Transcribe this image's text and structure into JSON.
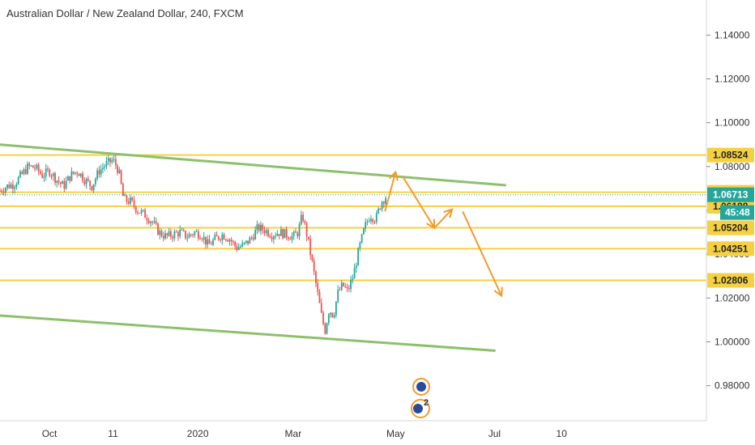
{
  "chart_data": {
    "type": "candlestick",
    "title": "Australian Dollar / New Zealand Dollar, 240, FXCM",
    "ylim": [
      0.964,
      1.156
    ],
    "y_ticks": [
      {
        "value": 1.14,
        "label": "1.14000"
      },
      {
        "value": 1.12,
        "label": "1.12000"
      },
      {
        "value": 1.1,
        "label": "1.10000"
      },
      {
        "value": 1.08,
        "label": "1.08000"
      },
      {
        "value": 1.06,
        "label": "1.06000"
      },
      {
        "value": 1.04,
        "label": "1.04000"
      },
      {
        "value": 1.02,
        "label": "1.02000"
      },
      {
        "value": 1.0,
        "label": "1.00000"
      },
      {
        "value": 0.98,
        "label": "0.98000"
      }
    ],
    "x_ticks": [
      {
        "t": 0.07,
        "label": "Oct"
      },
      {
        "t": 0.16,
        "label": "11"
      },
      {
        "t": 0.28,
        "label": "2020"
      },
      {
        "t": 0.415,
        "label": "Mar"
      },
      {
        "t": 0.56,
        "label": "May"
      },
      {
        "t": 0.7,
        "label": "Jul"
      },
      {
        "t": 0.795,
        "label": "10"
      }
    ],
    "horizontal_levels": [
      {
        "value": 1.08524,
        "label": "1.08524",
        "color": "#f5d142"
      },
      {
        "value": 1.06827,
        "label": "1.06827",
        "color": "#f5d142"
      },
      {
        "value": 1.06188,
        "label": "1.06188",
        "color": "#f5d142"
      },
      {
        "value": 1.05204,
        "label": "1.05204",
        "color": "#f5d142"
      },
      {
        "value": 1.04251,
        "label": "1.04251",
        "color": "#f5d142"
      },
      {
        "value": 1.02806,
        "label": "1.02806",
        "color": "#f5d142"
      }
    ],
    "current_price": {
      "value": 1.06713,
      "label": "1.06713",
      "color": "#26a69a"
    },
    "countdown": {
      "label": "45:48",
      "color": "#26a69a"
    },
    "trend_lines": [
      {
        "from": [
          0.0,
          1.09
        ],
        "to": [
          0.715,
          1.0715
        ],
        "color": "#8dc06b"
      },
      {
        "from": [
          0.0,
          1.012
        ],
        "to": [
          0.7,
          0.996
        ],
        "color": "#8dc06b"
      }
    ],
    "arrows": [
      {
        "from": [
          0.545,
          1.0595
        ],
        "to": [
          0.56,
          1.0775
        ],
        "color": "#f29b2b"
      },
      {
        "from": [
          0.57,
          1.0755
        ],
        "to": [
          0.615,
          1.052
        ],
        "color": "#f29b2b"
      },
      {
        "from": [
          0.615,
          1.052
        ],
        "to": [
          0.64,
          1.0605
        ],
        "color": "#f29b2b"
      },
      {
        "from": [
          0.655,
          1.0595
        ],
        "to": [
          0.71,
          1.021
        ],
        "color": "#f29b2b"
      }
    ],
    "price_path": [
      [
        0.0,
        1.069
      ],
      [
        0.01,
        1.071
      ],
      [
        0.02,
        1.072
      ],
      [
        0.03,
        1.076
      ],
      [
        0.04,
        1.08
      ],
      [
        0.05,
        1.0795
      ],
      [
        0.06,
        1.076
      ],
      [
        0.07,
        1.078
      ],
      [
        0.08,
        1.074
      ],
      [
        0.09,
        1.071
      ],
      [
        0.1,
        1.076
      ],
      [
        0.11,
        1.078
      ],
      [
        0.12,
        1.074
      ],
      [
        0.13,
        1.071
      ],
      [
        0.14,
        1.078
      ],
      [
        0.15,
        1.081
      ],
      [
        0.16,
        1.083
      ],
      [
        0.168,
        1.078
      ],
      [
        0.175,
        1.065
      ],
      [
        0.185,
        1.064
      ],
      [
        0.195,
        1.06
      ],
      [
        0.205,
        1.058
      ],
      [
        0.215,
        1.055
      ],
      [
        0.225,
        1.05
      ],
      [
        0.235,
        1.048
      ],
      [
        0.245,
        1.049
      ],
      [
        0.255,
        1.05
      ],
      [
        0.265,
        1.048
      ],
      [
        0.275,
        1.05
      ],
      [
        0.285,
        1.049
      ],
      [
        0.295,
        1.044
      ],
      [
        0.305,
        1.047
      ],
      [
        0.315,
        1.049
      ],
      [
        0.325,
        1.047
      ],
      [
        0.335,
        1.043
      ],
      [
        0.345,
        1.044
      ],
      [
        0.355,
        1.047
      ],
      [
        0.365,
        1.052
      ],
      [
        0.375,
        1.051
      ],
      [
        0.385,
        1.049
      ],
      [
        0.395,
        1.05
      ],
      [
        0.405,
        1.049
      ],
      [
        0.415,
        1.048
      ],
      [
        0.422,
        1.05
      ],
      [
        0.428,
        1.058
      ],
      [
        0.435,
        1.048
      ],
      [
        0.442,
        1.036
      ],
      [
        0.448,
        1.025
      ],
      [
        0.455,
        1.012
      ],
      [
        0.46,
        1.005
      ],
      [
        0.466,
        1.015
      ],
      [
        0.472,
        1.012
      ],
      [
        0.478,
        1.022
      ],
      [
        0.485,
        1.026
      ],
      [
        0.492,
        1.023
      ],
      [
        0.5,
        1.03
      ],
      [
        0.508,
        1.042
      ],
      [
        0.516,
        1.052
      ],
      [
        0.524,
        1.058
      ],
      [
        0.532,
        1.056
      ],
      [
        0.54,
        1.064
      ],
      [
        0.548,
        1.0671
      ]
    ]
  },
  "indicators": {
    "event_badge_count": "2"
  },
  "colors": {
    "background": "#ffffff",
    "up_candle": "#26a69a",
    "down_candle": "#ef5350",
    "axis_text": "#333333",
    "grid_line": "#e0e3eb"
  }
}
